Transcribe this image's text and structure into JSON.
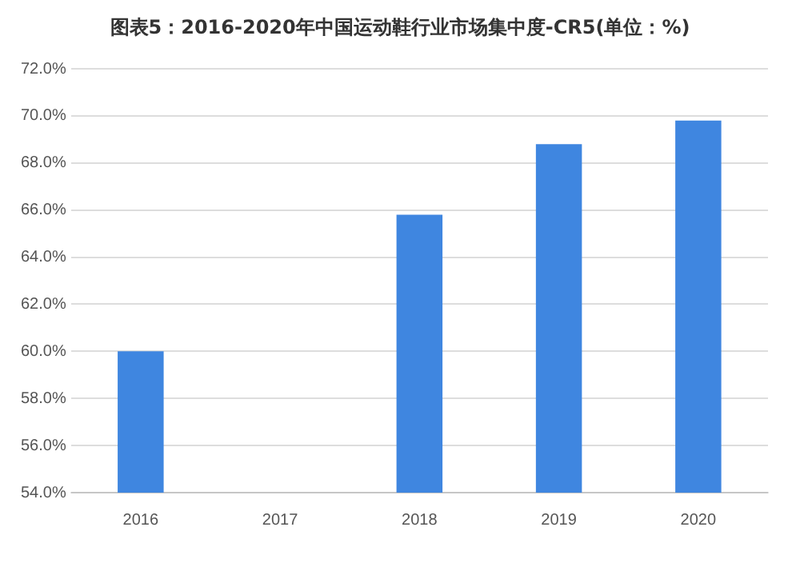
{
  "chart_data": {
    "type": "bar",
    "title": "图表5：2016-2020年中国运动鞋行业市场集中度-CR5(单位：%)",
    "categories": [
      "2016",
      "2017",
      "2018",
      "2019",
      "2020"
    ],
    "values": [
      60.0,
      null,
      65.8,
      68.8,
      69.8
    ],
    "color": "#3f86e0",
    "ylim": [
      54,
      72
    ],
    "yticks": [
      {
        "value": 54,
        "label": "54.0%"
      },
      {
        "value": 56,
        "label": "56.0%"
      },
      {
        "value": 58,
        "label": "58.0%"
      },
      {
        "value": 60,
        "label": "60.0%"
      },
      {
        "value": 62,
        "label": "62.0%"
      },
      {
        "value": 64,
        "label": "64.0%"
      },
      {
        "value": 66,
        "label": "66.0%"
      },
      {
        "value": 68,
        "label": "68.0%"
      },
      {
        "value": 70,
        "label": "70.0%"
      },
      {
        "value": 72,
        "label": "72.0%"
      }
    ],
    "grid": "y"
  }
}
